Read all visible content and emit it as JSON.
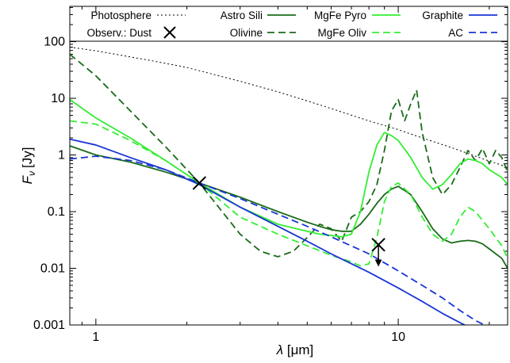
{
  "chart_data": {
    "type": "line",
    "xlabel_symbol": "λ",
    "xlabel_unit": "[μm]",
    "ylabel_symbol": "F",
    "ylabel_sub": "ν",
    "ylabel_unit": "[Jy]",
    "xscale": "log",
    "yscale": "log",
    "xlim": [
      0.82,
      23
    ],
    "ylim": [
      0.001,
      420
    ],
    "xticks": [
      {
        "v": 1,
        "label": "1"
      },
      {
        "v": 10,
        "label": "10"
      }
    ],
    "yticks": [
      {
        "v": 100,
        "label": "100"
      },
      {
        "v": 10,
        "label": "10"
      },
      {
        "v": 1,
        "label": "1"
      },
      {
        "v": 0.1,
        "label": "0.1"
      },
      {
        "v": 0.01,
        "label": "0.01"
      },
      {
        "v": 0.001,
        "label": "0.001"
      }
    ],
    "legend_position": "top",
    "series": [
      {
        "name": "Photosphere",
        "color": "#000000",
        "dash": "2,3",
        "width": 1,
        "x": [
          0.82,
          1,
          1.5,
          2,
          3,
          4,
          5,
          6,
          8,
          10,
          12,
          15,
          20,
          23
        ],
        "y": [
          80,
          69,
          47,
          35,
          20,
          13,
          9.0,
          6.6,
          4.0,
          2.8,
          2.0,
          1.35,
          0.78,
          0.61
        ]
      },
      {
        "name": "Astro Sili",
        "color": "#1a6b1a",
        "dash": "",
        "width": 1.8,
        "x": [
          0.82,
          1,
          1.3,
          1.7,
          2.2,
          3,
          4,
          5,
          5.5,
          6,
          6.5,
          7,
          7.5,
          8,
          8.5,
          9,
          9.5,
          10,
          11,
          12,
          13,
          14,
          15,
          16,
          17,
          18,
          19,
          20,
          22,
          23
        ],
        "y": [
          1.45,
          1.0,
          0.75,
          0.5,
          0.32,
          0.18,
          0.1,
          0.065,
          0.055,
          0.048,
          0.045,
          0.045,
          0.06,
          0.09,
          0.14,
          0.2,
          0.25,
          0.28,
          0.2,
          0.1,
          0.05,
          0.033,
          0.028,
          0.03,
          0.031,
          0.03,
          0.027,
          0.022,
          0.015,
          0.01
        ]
      },
      {
        "name": "Olivine",
        "color": "#1a6b1a",
        "dash": "9,5",
        "width": 1.8,
        "x": [
          0.82,
          1,
          1.3,
          1.7,
          2.2,
          3,
          3.5,
          4,
          4.5,
          5,
          5.5,
          6,
          6.5,
          7,
          7.5,
          8,
          8.5,
          9,
          9.5,
          10,
          10.5,
          11,
          11.5,
          12,
          13,
          14,
          15,
          16,
          17,
          18,
          19,
          20,
          21,
          22,
          23
        ],
        "y": [
          60,
          25,
          6.0,
          1.4,
          0.32,
          0.04,
          0.02,
          0.016,
          0.02,
          0.035,
          0.06,
          0.05,
          0.03,
          0.08,
          0.1,
          0.15,
          0.3,
          1.2,
          6.0,
          9.5,
          4.0,
          8.0,
          14.0,
          2.5,
          0.4,
          0.2,
          0.3,
          0.6,
          1.2,
          0.8,
          1.3,
          0.7,
          1.2,
          0.9,
          0.5
        ]
      },
      {
        "name": "MgFe Pyro",
        "color": "#33ee33",
        "dash": "",
        "width": 1.8,
        "x": [
          0.82,
          1,
          1.3,
          1.7,
          2.2,
          3,
          4,
          5,
          5.5,
          6,
          6.5,
          7,
          7.5,
          8,
          8.5,
          9,
          9.5,
          10,
          11,
          12,
          13,
          14,
          15,
          16,
          17,
          18,
          19,
          20,
          22,
          23
        ],
        "y": [
          9.5,
          4.5,
          2.0,
          0.8,
          0.32,
          0.12,
          0.06,
          0.045,
          0.04,
          0.038,
          0.036,
          0.04,
          0.1,
          0.5,
          1.5,
          2.5,
          2.2,
          1.8,
          0.9,
          0.4,
          0.25,
          0.3,
          0.45,
          0.7,
          0.85,
          0.8,
          0.7,
          0.55,
          0.4,
          0.3
        ]
      },
      {
        "name": "MgFe Oliv",
        "color": "#33ee33",
        "dash": "9,5",
        "width": 1.8,
        "x": [
          0.82,
          1,
          1.3,
          1.7,
          2.2,
          3,
          4,
          5,
          6,
          7,
          7.5,
          8,
          8.5,
          9,
          9.5,
          10,
          11,
          12,
          13,
          14,
          15,
          16,
          17,
          18,
          19,
          20,
          22,
          23
        ],
        "y": [
          4.0,
          3.5,
          1.8,
          0.8,
          0.32,
          0.08,
          0.04,
          0.025,
          0.017,
          0.013,
          0.011,
          0.012,
          0.035,
          0.15,
          0.28,
          0.32,
          0.2,
          0.08,
          0.04,
          0.03,
          0.04,
          0.08,
          0.12,
          0.1,
          0.07,
          0.05,
          0.025,
          0.015
        ]
      },
      {
        "name": "Graphite",
        "color": "#1a35d6",
        "dash": "",
        "width": 1.8,
        "x": [
          0.82,
          1,
          1.3,
          1.7,
          2.2,
          3,
          4,
          5,
          6,
          8,
          10,
          12,
          14,
          16,
          18,
          20
        ],
        "y": [
          1.9,
          1.5,
          0.9,
          0.55,
          0.3,
          0.12,
          0.055,
          0.03,
          0.018,
          0.0085,
          0.0045,
          0.0026,
          0.0016,
          0.0011,
          0.0008,
          0.00065
        ]
      },
      {
        "name": "AC",
        "color": "#1a35d6",
        "dash": "9,5",
        "width": 1.8,
        "x": [
          0.82,
          1,
          1.3,
          1.7,
          2.2,
          3,
          4,
          5,
          6,
          8,
          10,
          12,
          14,
          16,
          18,
          20
        ],
        "y": [
          0.85,
          0.95,
          0.8,
          0.55,
          0.32,
          0.17,
          0.09,
          0.055,
          0.036,
          0.018,
          0.009,
          0.005,
          0.003,
          0.0018,
          0.0012,
          0.0009
        ]
      }
    ],
    "observation": {
      "name": "Observ.: Dust",
      "points": [
        {
          "x": 2.2,
          "y": 0.32,
          "upper_limit": false
        },
        {
          "x": 8.6,
          "y": 0.026,
          "upper_limit": true
        }
      ]
    }
  }
}
